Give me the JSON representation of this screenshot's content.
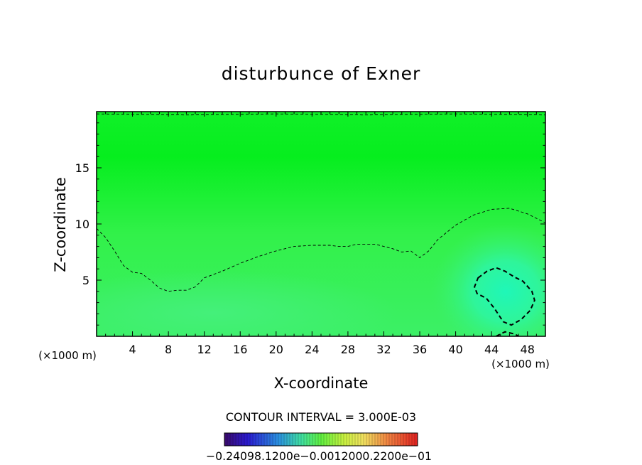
{
  "chart_data": {
    "type": "heatmap",
    "title": "disturbunce of Exner",
    "xlabel": "X-coordinate",
    "ylabel": "Z-coordinate",
    "x_unit": "(×1000 m)",
    "z_unit": "(×1000 m)",
    "xlim": [
      0,
      50
    ],
    "ylim": [
      0,
      20
    ],
    "x_ticks": [
      4,
      8,
      12,
      16,
      20,
      24,
      28,
      32,
      36,
      40,
      44,
      48
    ],
    "y_ticks": [
      5,
      10,
      15
    ],
    "contour_interval_text": "CONTOUR INTERVAL = 3.000E-03",
    "colorbar_labels": [
      "-0.24098.1200e-01",
      "-0.0012000-2200e-01",
      "-0.2400e-01"
    ],
    "colorbar_label_text": "−0.24098.1200e−0.0012000.2200e−01",
    "colors": {
      "field_base": "#2ef246",
      "field_top": "#06f020",
      "field_low": "#3df070",
      "anomaly": "#22f5b8",
      "frame": "#000000"
    },
    "contours": [
      {
        "style": "dashed-thin",
        "points": [
          [
            0,
            9.6
          ],
          [
            1,
            8.8
          ],
          [
            2,
            7.6
          ],
          [
            3,
            6.3
          ],
          [
            4,
            5.7
          ],
          [
            5,
            5.6
          ],
          [
            6,
            5.0
          ],
          [
            7,
            4.3
          ],
          [
            8,
            4.0
          ],
          [
            9,
            4.1
          ],
          [
            10,
            4.1
          ],
          [
            11,
            4.4
          ],
          [
            12,
            5.2
          ],
          [
            14,
            5.8
          ],
          [
            16,
            6.5
          ],
          [
            18,
            7.1
          ],
          [
            20,
            7.6
          ],
          [
            22,
            8.0
          ],
          [
            24,
            8.1
          ],
          [
            26,
            8.1
          ],
          [
            27,
            8.0
          ],
          [
            28,
            8.0
          ],
          [
            29,
            8.2
          ],
          [
            31,
            8.2
          ],
          [
            33,
            7.8
          ],
          [
            34,
            7.5
          ],
          [
            35,
            7.6
          ],
          [
            36,
            7.0
          ],
          [
            37,
            7.6
          ],
          [
            38,
            8.6
          ],
          [
            40,
            9.9
          ],
          [
            42,
            10.8
          ],
          [
            44,
            11.3
          ],
          [
            46,
            11.4
          ],
          [
            48,
            10.9
          ],
          [
            50,
            10.1
          ]
        ]
      },
      {
        "style": "dashed-thin",
        "points": [
          [
            0,
            19.8
          ],
          [
            10,
            19.7
          ],
          [
            20,
            19.8
          ],
          [
            30,
            19.7
          ],
          [
            40,
            19.8
          ],
          [
            50,
            19.7
          ]
        ]
      },
      {
        "style": "dashed-thick",
        "closed": true,
        "points": [
          [
            42.5,
            5.2
          ],
          [
            43.5,
            5.8
          ],
          [
            44.5,
            6.1
          ],
          [
            45.5,
            5.8
          ],
          [
            46.5,
            5.3
          ],
          [
            47.5,
            4.9
          ],
          [
            48.5,
            4.0
          ],
          [
            48.8,
            3.2
          ],
          [
            48.3,
            2.3
          ],
          [
            47.3,
            1.5
          ],
          [
            46.2,
            1.0
          ],
          [
            45.3,
            1.3
          ],
          [
            44.3,
            2.5
          ],
          [
            43.4,
            3.4
          ],
          [
            42.4,
            3.8
          ],
          [
            42.1,
            4.4
          ]
        ]
      },
      {
        "style": "dashed-thick",
        "points": [
          [
            44.5,
            0
          ],
          [
            45.5,
            0.4
          ],
          [
            46.6,
            0.2
          ],
          [
            47.0,
            0
          ]
        ]
      }
    ]
  }
}
